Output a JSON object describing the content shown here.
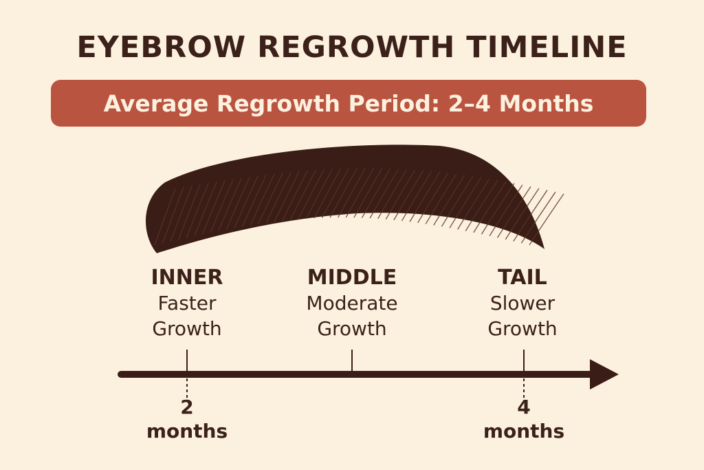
{
  "title": "EYEBROW REGROWTH TIMELINE",
  "banner": "Average Regrowth Period: 2–4 Months",
  "sections": [
    {
      "name": "INNER",
      "desc_line1": "Faster",
      "desc_line2": "Growth"
    },
    {
      "name": "MIDDLE",
      "desc_line1": "Moderate",
      "desc_line2": "Growth"
    },
    {
      "name": "TAIL",
      "desc_line1": "Slower",
      "desc_line2": "Growth"
    }
  ],
  "markers": [
    {
      "value": "2",
      "unit": "months"
    },
    {
      "value": "4",
      "unit": "months"
    }
  ],
  "colors": {
    "background": "#fcf1df",
    "text": "#3b2119",
    "banner": "#b95440",
    "brow": "#3a1d16"
  }
}
